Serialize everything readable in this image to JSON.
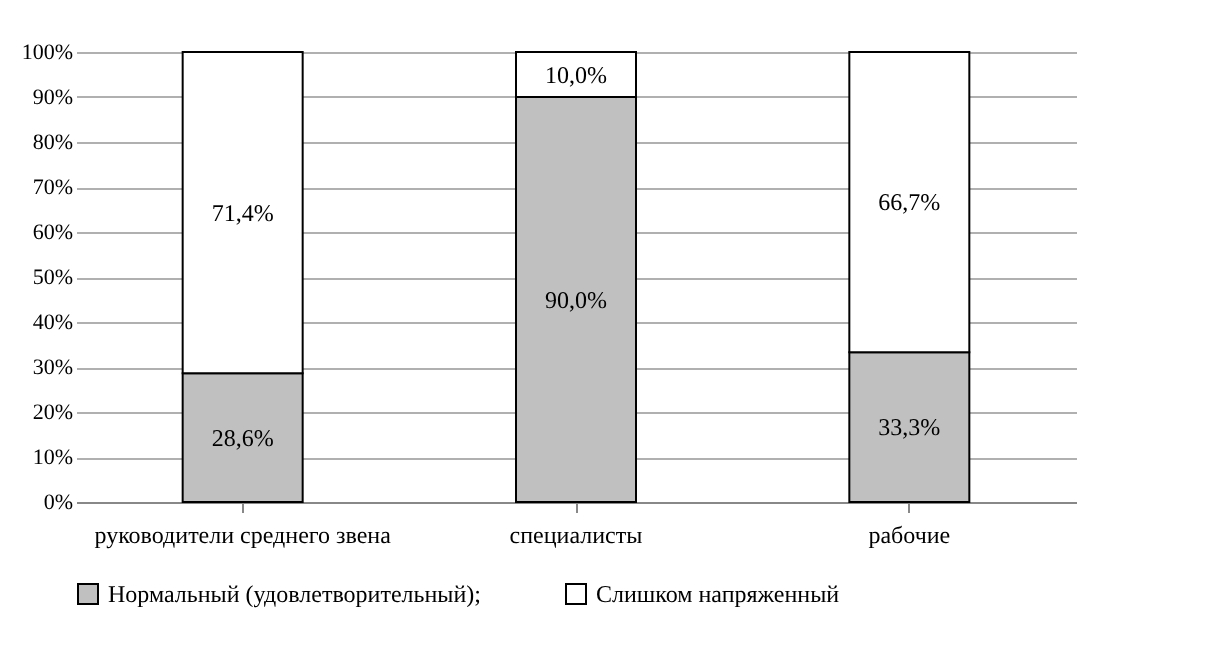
{
  "chart_data": {
    "type": "bar",
    "stacked": true,
    "categories": [
      "руководители среднего звена",
      "специалисты",
      "рабочие"
    ],
    "series": [
      {
        "name": "Нормальный (удовлетворительный);",
        "color": "#c0c0c0",
        "values": [
          28.6,
          90.0,
          33.3
        ],
        "value_labels": [
          "28,6%",
          "90,0%",
          "33,3%"
        ]
      },
      {
        "name": "Слишком напряженный",
        "color": "#ffffff",
        "values": [
          71.4,
          10.0,
          66.7
        ],
        "value_labels": [
          "71,4%",
          "10,0%",
          "66,7%"
        ]
      }
    ],
    "ylim": [
      0,
      100
    ],
    "yticks": [
      {
        "value": 0,
        "label": "0%"
      },
      {
        "value": 10,
        "label": "10%"
      },
      {
        "value": 20,
        "label": "20%"
      },
      {
        "value": 30,
        "label": "30%"
      },
      {
        "value": 40,
        "label": "40%"
      },
      {
        "value": 50,
        "label": "50%"
      },
      {
        "value": 60,
        "label": "60%"
      },
      {
        "value": 70,
        "label": "70%"
      },
      {
        "value": 80,
        "label": "80%"
      },
      {
        "value": 90,
        "label": "90%"
      },
      {
        "value": 100,
        "label": "100%"
      }
    ],
    "grid": "y",
    "legend": "bottom"
  }
}
